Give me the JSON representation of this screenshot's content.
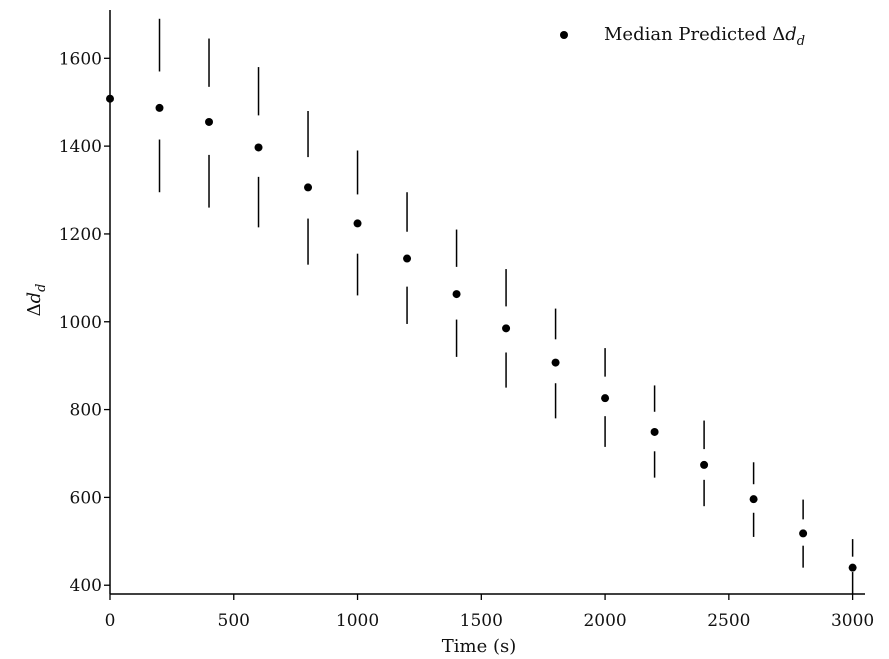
{
  "chart_data": {
    "type": "scatter",
    "xlabel": "Time (s)",
    "ylabel": "Δd_d",
    "xlim": [
      0,
      3050
    ],
    "ylim": [
      380,
      1710
    ],
    "xticks": [
      0,
      500,
      1000,
      1500,
      2000,
      2500,
      3000
    ],
    "yticks": [
      400,
      600,
      800,
      1000,
      1200,
      1400,
      1600
    ],
    "xtick_labels": [
      "0",
      "500",
      "1000",
      "1500",
      "2000",
      "2500",
      "3000"
    ],
    "ytick_labels": [
      "400",
      "600",
      "800",
      "1000",
      "1200",
      "1400",
      "1600"
    ],
    "grid": false,
    "legend": {
      "label": "Median Predicted Δd_d",
      "position": "top-right"
    },
    "series": [
      {
        "name": "Median Predicted Δd_d",
        "x": [
          0,
          200,
          400,
          600,
          800,
          1000,
          1200,
          1400,
          1600,
          1800,
          2000,
          2200,
          2400,
          2600,
          2800,
          3000
        ],
        "y": [
          1508,
          1487,
          1455,
          1397,
          1306,
          1224,
          1144,
          1063,
          985,
          907,
          826,
          749,
          674,
          596,
          518,
          440
        ],
        "upper_bar": [
          [
            1720,
            1720
          ],
          [
            1570,
            1690
          ],
          [
            1535,
            1645
          ],
          [
            1470,
            1580
          ],
          [
            1375,
            1480
          ],
          [
            1290,
            1390
          ],
          [
            1205,
            1295
          ],
          [
            1125,
            1210
          ],
          [
            1035,
            1120
          ],
          [
            960,
            1030
          ],
          [
            875,
            940
          ],
          [
            795,
            855
          ],
          [
            710,
            775
          ],
          [
            630,
            680
          ],
          [
            550,
            595
          ],
          [
            465,
            505
          ]
        ],
        "lower_bar": [
          [
            1495,
            1495
          ],
          [
            1295,
            1415
          ],
          [
            1260,
            1380
          ],
          [
            1215,
            1330
          ],
          [
            1130,
            1235
          ],
          [
            1060,
            1155
          ],
          [
            995,
            1080
          ],
          [
            920,
            1005
          ],
          [
            850,
            930
          ],
          [
            780,
            860
          ],
          [
            715,
            785
          ],
          [
            645,
            705
          ],
          [
            580,
            640
          ],
          [
            510,
            565
          ],
          [
            440,
            490
          ],
          [
            380,
            430
          ]
        ]
      }
    ]
  }
}
